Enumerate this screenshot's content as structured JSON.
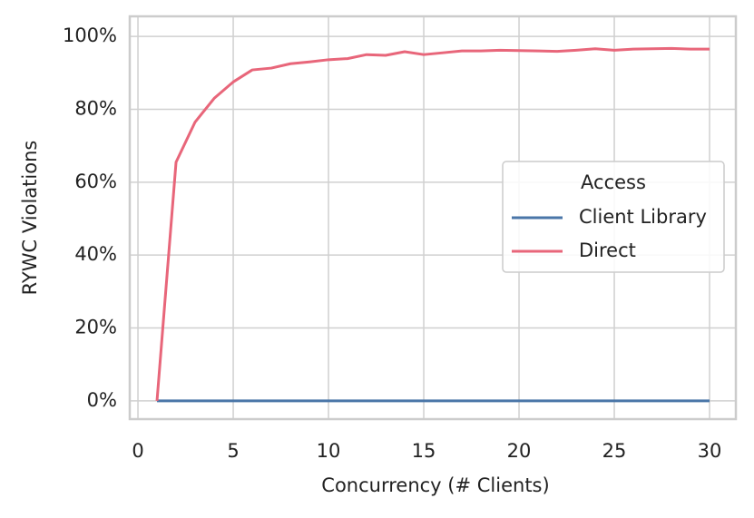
{
  "chart_data": {
    "type": "line",
    "x_label": "Concurrency (# Clients)",
    "y_label": "RYWC Violations",
    "x": [
      1,
      2,
      3,
      4,
      5,
      6,
      7,
      8,
      9,
      10,
      11,
      12,
      13,
      14,
      15,
      16,
      17,
      18,
      19,
      20,
      21,
      22,
      23,
      24,
      25,
      26,
      27,
      28,
      29,
      30
    ],
    "series": [
      {
        "name": "Client Library",
        "color": "#4a76a8",
        "values": [
          0,
          0,
          0,
          0,
          0,
          0,
          0,
          0,
          0,
          0,
          0,
          0,
          0,
          0,
          0,
          0,
          0,
          0,
          0,
          0,
          0,
          0,
          0,
          0,
          0,
          0,
          0,
          0,
          0,
          0
        ]
      },
      {
        "name": "Direct",
        "color": "#e8667a",
        "values": [
          0,
          65.5,
          76.5,
          83,
          87.5,
          90.8,
          91.3,
          92.5,
          93,
          93.6,
          93.9,
          95,
          94.8,
          95.8,
          95,
          95.5,
          96,
          96,
          96.2,
          96.1,
          96,
          95.9,
          96.2,
          96.6,
          96.2,
          96.5,
          96.6,
          96.7,
          96.5,
          96.5
        ]
      }
    ],
    "xlim": [
      -0.43,
      31.38
    ],
    "xticks": [
      0,
      5,
      10,
      15,
      20,
      25,
      30
    ],
    "ylim": [
      -5,
      105.5
    ],
    "yticks": [
      {
        "value": 0,
        "label": "0%"
      },
      {
        "value": 20,
        "label": "20%"
      },
      {
        "value": 40,
        "label": "40%"
      },
      {
        "value": 60,
        "label": "60%"
      },
      {
        "value": 80,
        "label": "80%"
      },
      {
        "value": 100,
        "label": "100%"
      }
    ],
    "grid": true,
    "legend_title": "Access",
    "legend_position": "center right"
  }
}
